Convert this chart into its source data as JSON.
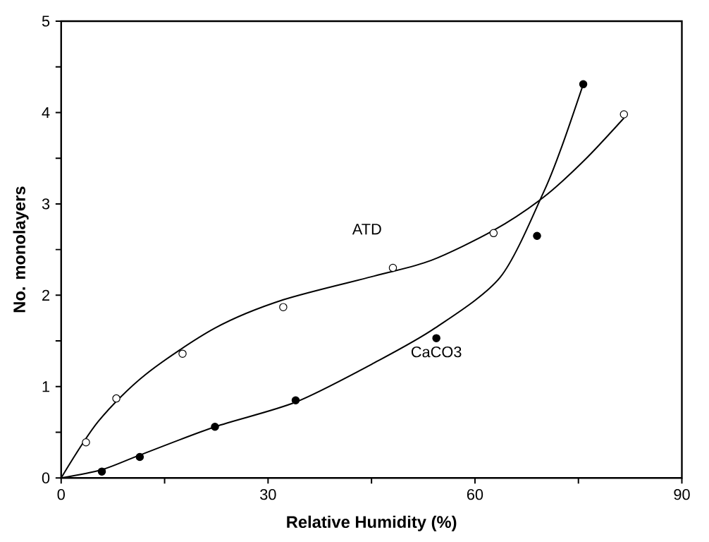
{
  "chart_data": {
    "type": "scatter",
    "xlabel": "Relative Humidity (%)",
    "ylabel": "No. monolayers",
    "xlim": [
      0,
      90
    ],
    "ylim": [
      0,
      5
    ],
    "xticks": [
      0,
      {
        "value": 15,
        "label": null
      },
      30,
      {
        "value": 45,
        "label": null
      },
      60,
      {
        "value": 75,
        "label": null
      },
      90
    ],
    "yticks": [
      0,
      {
        "value": 0.5,
        "label": null
      },
      1,
      {
        "value": 1.5,
        "label": null
      },
      2,
      {
        "value": 2.5,
        "label": null
      },
      3,
      {
        "value": 3.5,
        "label": null
      },
      4,
      {
        "value": 4.5,
        "label": null
      },
      5
    ],
    "grid": false,
    "legend": false,
    "series": [
      {
        "name": "ATD",
        "color": "#ffffff",
        "marker": "circle",
        "x": [
          3.6,
          8.0,
          17.6,
          32.2,
          48.1,
          62.7,
          81.6
        ],
        "values": [
          0.39,
          0.87,
          1.36,
          1.87,
          2.3,
          2.68,
          3.98
        ]
      },
      {
        "name": "CaCO3",
        "color": "#000000",
        "marker": "circle",
        "x": [
          5.9,
          11.4,
          22.3,
          34.0,
          54.4,
          69.0,
          75.7
        ],
        "values": [
          0.07,
          0.23,
          0.56,
          0.85,
          1.53,
          2.65,
          4.31
        ]
      },
      {
        "type": "line",
        "marker": "none",
        "color": "#000000",
        "x": [
          0,
          5.4,
          12.2,
          22.3,
          32.2,
          45.4,
          53.6,
          62.7,
          69.9,
          75.9,
          81.6
        ],
        "values": [
          0,
          0.62,
          1.13,
          1.64,
          1.95,
          2.21,
          2.38,
          2.71,
          3.07,
          3.48,
          3.94
        ]
      },
      {
        "type": "line",
        "marker": "none",
        "color": "#000000",
        "x": [
          0,
          5.9,
          11.4,
          22.3,
          34.0,
          45.4,
          54.2,
          63.7,
          69.9,
          72.6,
          75.7
        ],
        "values": [
          0,
          0.09,
          0.25,
          0.56,
          0.83,
          1.26,
          1.64,
          2.2,
          3.12,
          3.63,
          4.31
        ]
      }
    ]
  }
}
